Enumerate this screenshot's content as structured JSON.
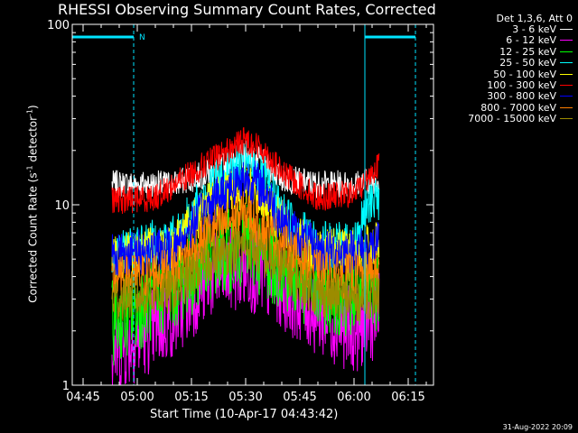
{
  "chart_data": {
    "type": "line",
    "title": "RHESSI Observing Summary Count Rates, Corrected",
    "xlabel": "Start Time (10-Apr-17 04:43:42)",
    "ylabel_main": "Corrected Count Rate (s",
    "ylabel_exp1": "-1",
    "ylabel_mid": " detector",
    "ylabel_exp2": "-1",
    "ylabel_end": ")",
    "yscale": "log",
    "ylim": [
      1,
      100
    ],
    "xlim": [
      "04:42",
      "06:22"
    ],
    "x_tick_labels": [
      "04:45",
      "05:00",
      "05:15",
      "05:30",
      "05:45",
      "06:00",
      "06:15"
    ],
    "y_tick_labels": [
      "1",
      "10",
      "100"
    ],
    "legend_header": "Det 1,3,6, Att 0",
    "legend_position": "top-right",
    "timestamp": "31-Aug-2022 20:09",
    "annotation_flag": "N",
    "data_start": "04:53",
    "data_end": "06:07",
    "series": [
      {
        "name": "3 - 6 keV",
        "color": "#ffffff",
        "points": [
          [
            "04:53",
            13
          ],
          [
            "05:10",
            13
          ],
          [
            "05:20",
            15
          ],
          [
            "05:25",
            17
          ],
          [
            "05:30",
            19
          ],
          [
            "05:35",
            17
          ],
          [
            "05:40",
            14
          ],
          [
            "05:50",
            13
          ],
          [
            "06:00",
            13
          ],
          [
            "06:07",
            14
          ]
        ]
      },
      {
        "name": "6 - 12 keV",
        "color": "#ff00ff",
        "points": [
          [
            "04:53",
            1.5
          ],
          [
            "05:10",
            2.4
          ],
          [
            "05:20",
            4
          ],
          [
            "05:30",
            4.5
          ],
          [
            "05:40",
            3.5
          ],
          [
            "05:50",
            2.5
          ],
          [
            "06:00",
            2
          ],
          [
            "06:07",
            2.5
          ]
        ]
      },
      {
        "name": "12 - 25 keV",
        "color": "#00ff00",
        "points": [
          [
            "04:53",
            2.2
          ],
          [
            "05:10",
            3.5
          ],
          [
            "05:20",
            5
          ],
          [
            "05:30",
            6
          ],
          [
            "05:40",
            4.5
          ],
          [
            "05:50",
            3.3
          ],
          [
            "06:00",
            3.2
          ],
          [
            "06:07",
            3.5
          ]
        ]
      },
      {
        "name": "25 - 50 keV",
        "color": "#00ffff",
        "points": [
          [
            "04:53",
            5.5
          ],
          [
            "05:10",
            6.5
          ],
          [
            "05:20",
            12
          ],
          [
            "05:25",
            15
          ],
          [
            "05:30",
            17
          ],
          [
            "05:35",
            14
          ],
          [
            "05:40",
            9
          ],
          [
            "05:50",
            6
          ],
          [
            "06:00",
            6
          ],
          [
            "06:05",
            11
          ]
        ]
      },
      {
        "name": "50 - 100 keV",
        "color": "#ffff00",
        "points": [
          [
            "04:53",
            5
          ],
          [
            "05:10",
            6
          ],
          [
            "05:20",
            10
          ],
          [
            "05:30",
            13
          ],
          [
            "05:40",
            8
          ],
          [
            "05:50",
            5.5
          ],
          [
            "06:00",
            5.5
          ],
          [
            "06:07",
            6
          ]
        ]
      },
      {
        "name": "100 - 300 keV",
        "color": "#ff0000",
        "points": [
          [
            "04:53",
            10.5
          ],
          [
            "05:05",
            11
          ],
          [
            "05:15",
            15
          ],
          [
            "05:25",
            20
          ],
          [
            "05:30",
            23
          ],
          [
            "05:35",
            20
          ],
          [
            "05:40",
            15
          ],
          [
            "05:50",
            11
          ],
          [
            "06:00",
            11.5
          ],
          [
            "06:07",
            17
          ]
        ]
      },
      {
        "name": "300 - 800 keV",
        "color": "#0000ff",
        "points": [
          [
            "04:53",
            5.3
          ],
          [
            "05:10",
            5.6
          ],
          [
            "05:20",
            10
          ],
          [
            "05:25",
            12.5
          ],
          [
            "05:30",
            14
          ],
          [
            "05:35",
            12.5
          ],
          [
            "05:40",
            8
          ],
          [
            "05:50",
            5.5
          ],
          [
            "06:00",
            5.5
          ],
          [
            "06:07",
            6
          ]
        ]
      },
      {
        "name": "800 - 7000 keV",
        "color": "#ff7f00",
        "points": [
          [
            "04:53",
            3.8
          ],
          [
            "05:10",
            4.3
          ],
          [
            "05:20",
            7
          ],
          [
            "05:30",
            9
          ],
          [
            "05:40",
            6
          ],
          [
            "05:50",
            4.2
          ],
          [
            "06:00",
            4
          ],
          [
            "06:07",
            4.2
          ]
        ]
      },
      {
        "name": "7000 - 15000 keV",
        "color": "#9c8c00",
        "points": [
          [
            "04:53",
            3
          ],
          [
            "05:10",
            3.3
          ],
          [
            "05:20",
            5
          ],
          [
            "05:30",
            6
          ],
          [
            "05:40",
            4.5
          ],
          [
            "05:50",
            3.2
          ],
          [
            "06:00",
            3
          ],
          [
            "06:07",
            3.2
          ]
        ]
      }
    ],
    "markers": [
      {
        "time": "04:42",
        "style": "solid"
      },
      {
        "time": "04:59",
        "style": "dashed"
      },
      {
        "time": "06:03",
        "style": "solid"
      },
      {
        "time": "06:17",
        "style": "dashed"
      }
    ],
    "marker_color": "#00e5ff",
    "marker_bars": [
      [
        "04:42",
        "04:59"
      ],
      [
        "06:03",
        "06:17"
      ]
    ]
  }
}
